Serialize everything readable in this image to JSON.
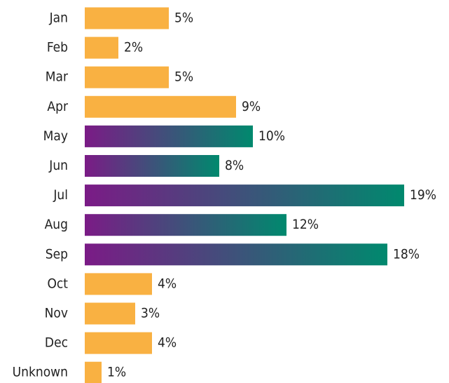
{
  "chart_data": {
    "type": "barh",
    "categories": [
      "Jan",
      "Feb",
      "Mar",
      "Apr",
      "May",
      "Jun",
      "Jul",
      "Aug",
      "Sep",
      "Oct",
      "Nov",
      "Dec",
      "Unknown"
    ],
    "values": [
      5,
      2,
      5,
      9,
      10,
      8,
      19,
      12,
      18,
      4,
      3,
      4,
      1
    ],
    "value_labels": [
      "5%",
      "2%",
      "5%",
      "9%",
      "10%",
      "8%",
      "19%",
      "12%",
      "18%",
      "4%",
      "3%",
      "4%",
      "1%"
    ],
    "colors": [
      "#f9b142",
      "#f9b142",
      "#f9b142",
      "#f9b142",
      [
        "#7b1b86",
        "#00896e"
      ],
      [
        "#7b1b86",
        "#00896e"
      ],
      [
        "#7b1b86",
        "#00896e"
      ],
      [
        "#7b1b86",
        "#00896e"
      ],
      [
        "#7b1b86",
        "#00896e"
      ],
      "#f9b142",
      "#f9b142",
      "#f9b142",
      "#f9b142"
    ]
  }
}
